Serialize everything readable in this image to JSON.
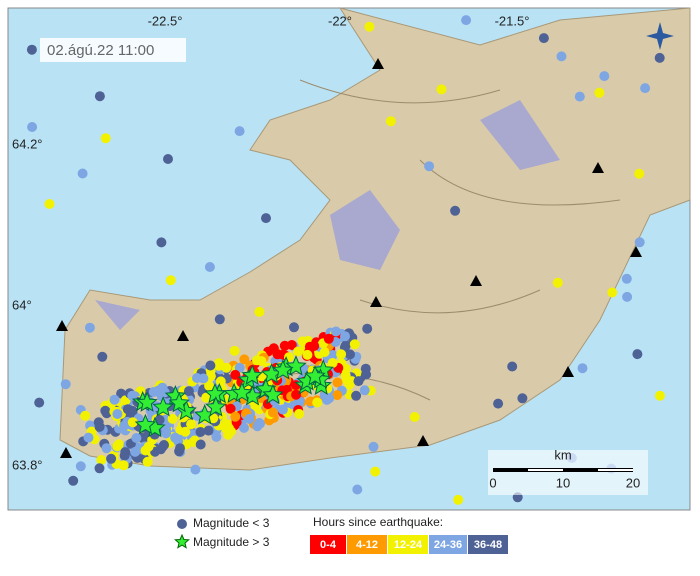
{
  "map": {
    "timestamp": "02.ágú.22  11:00",
    "longitude_labels": [
      "-22.5°",
      "-22°",
      "-21.5°"
    ],
    "latitude_labels": [
      "64.2°",
      "64°",
      "63.8°"
    ],
    "scale": {
      "unit": "km",
      "ticks": [
        "0",
        "10",
        "20"
      ]
    }
  },
  "legend": {
    "magnitude": [
      "Magnitude < 3",
      "Magnitude > 3"
    ],
    "hours_title": "Hours since earthquake:",
    "hours": [
      {
        "label": "0-4",
        "color": "#ff0000"
      },
      {
        "label": "4-12",
        "color": "#ff9a00"
      },
      {
        "label": "12-24",
        "color": "#f2f200"
      },
      {
        "label": "24-36",
        "color": "#7ea6e3"
      },
      {
        "label": "36-48",
        "color": "#4e6296"
      }
    ]
  }
}
